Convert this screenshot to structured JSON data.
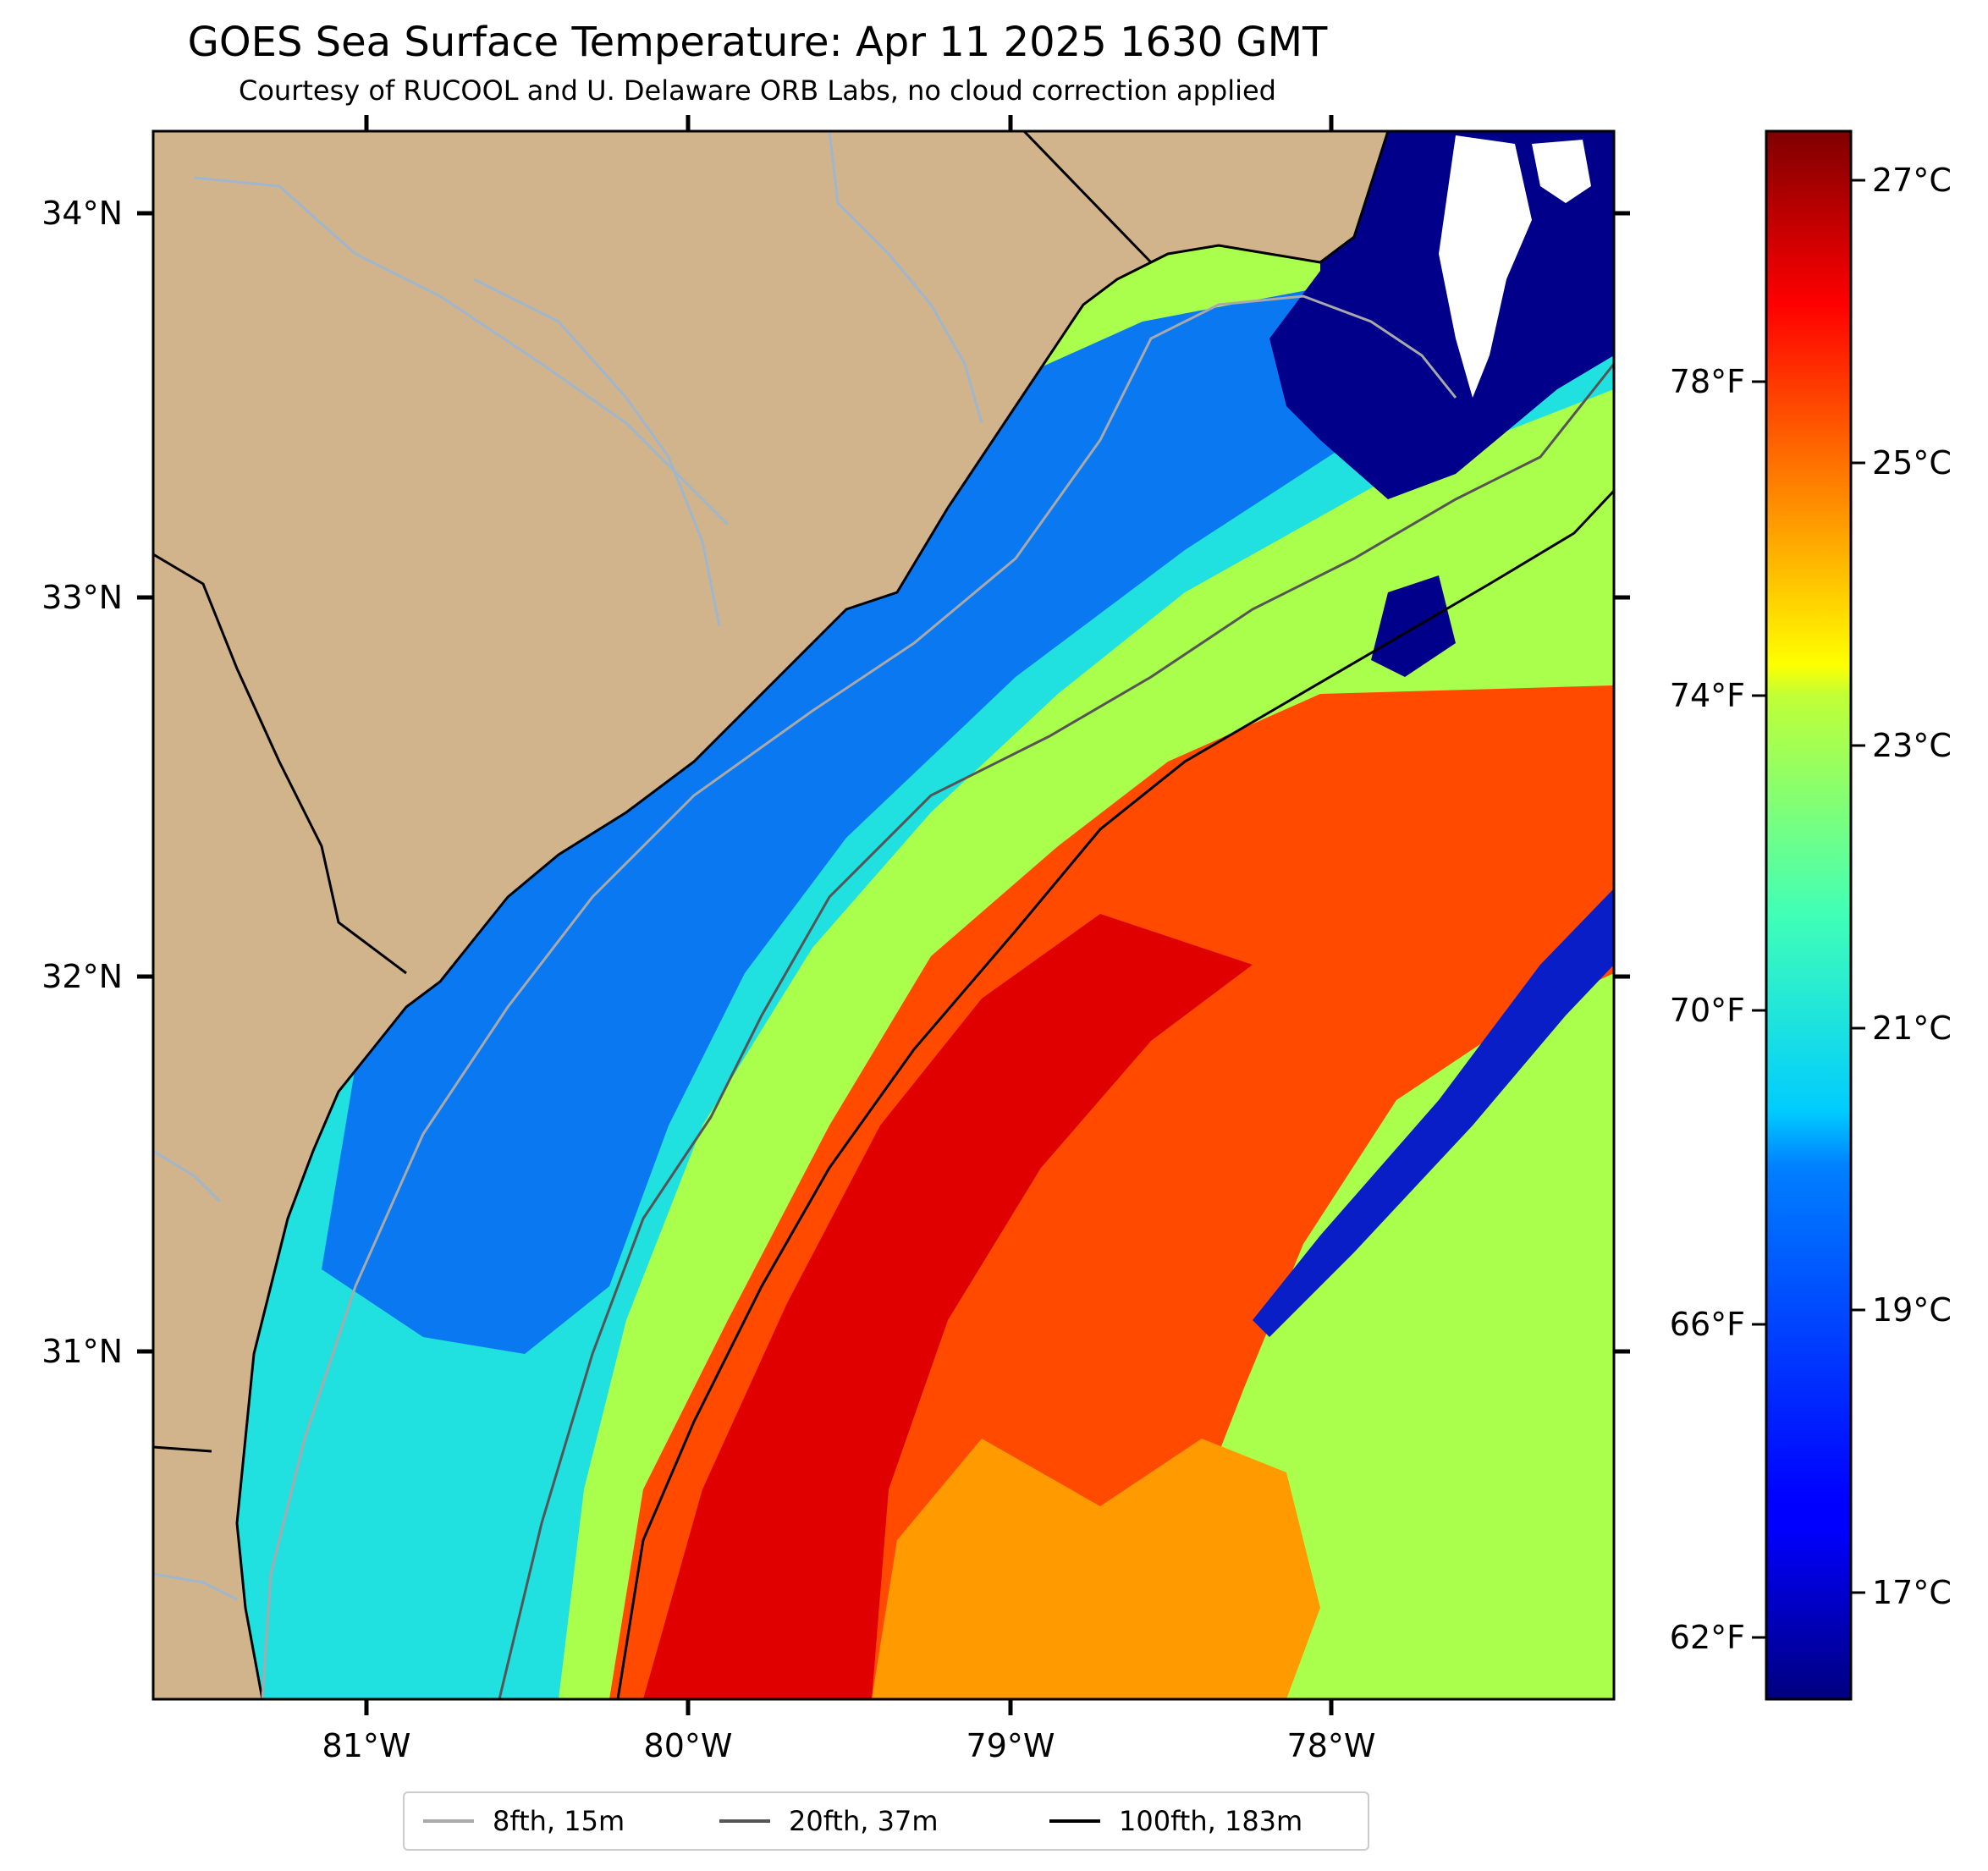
{
  "title": "GOES Sea Surface Temperature: Apr 11 2025 1630 GMT",
  "subtitle": "Courtesy of RUCOOL and U. Delaware ORB Labs, no cloud correction applied",
  "map": {
    "lat_range": [
      30.1,
      34.2
    ],
    "lon_range": [
      -81.65,
      -77.1
    ],
    "lat_ticks": [
      {
        "value": 34,
        "label": "34°N"
      },
      {
        "value": 33,
        "label": "33°N"
      },
      {
        "value": 32,
        "label": "32°N"
      },
      {
        "value": 31,
        "label": "31°N"
      }
    ],
    "lon_ticks": [
      {
        "value": -81,
        "label": "81°W"
      },
      {
        "value": -80,
        "label": "80°W"
      },
      {
        "value": -79,
        "label": "79°W"
      },
      {
        "value": -78,
        "label": "78°W"
      }
    ],
    "land_color": "#d2b48c",
    "river_color": "#9fb6cd",
    "no_data_color": "#ffffff"
  },
  "colorbar": {
    "colormap": "jet",
    "vmin_c": 16.25,
    "vmax_c": 27.35,
    "celsius_ticks": [
      {
        "value": 27,
        "label": "27°C"
      },
      {
        "value": 25,
        "label": "25°C"
      },
      {
        "value": 23,
        "label": "23°C"
      },
      {
        "value": 21,
        "label": "21°C"
      },
      {
        "value": 19,
        "label": "19°C"
      },
      {
        "value": 17,
        "label": "17°C"
      }
    ],
    "fahrenheit_ticks": [
      {
        "value": 78,
        "label": "78°F"
      },
      {
        "value": 74,
        "label": "74°F"
      },
      {
        "value": 70,
        "label": "70°F"
      },
      {
        "value": 66,
        "label": "66°F"
      },
      {
        "value": 62,
        "label": "62°F"
      }
    ]
  },
  "legend": {
    "items": [
      {
        "label": "8fth, 15m",
        "color": "#a9a9a9"
      },
      {
        "label": "20fth, 37m",
        "color": "#555555"
      },
      {
        "label": "100fth, 183m",
        "color": "#000000"
      }
    ]
  }
}
